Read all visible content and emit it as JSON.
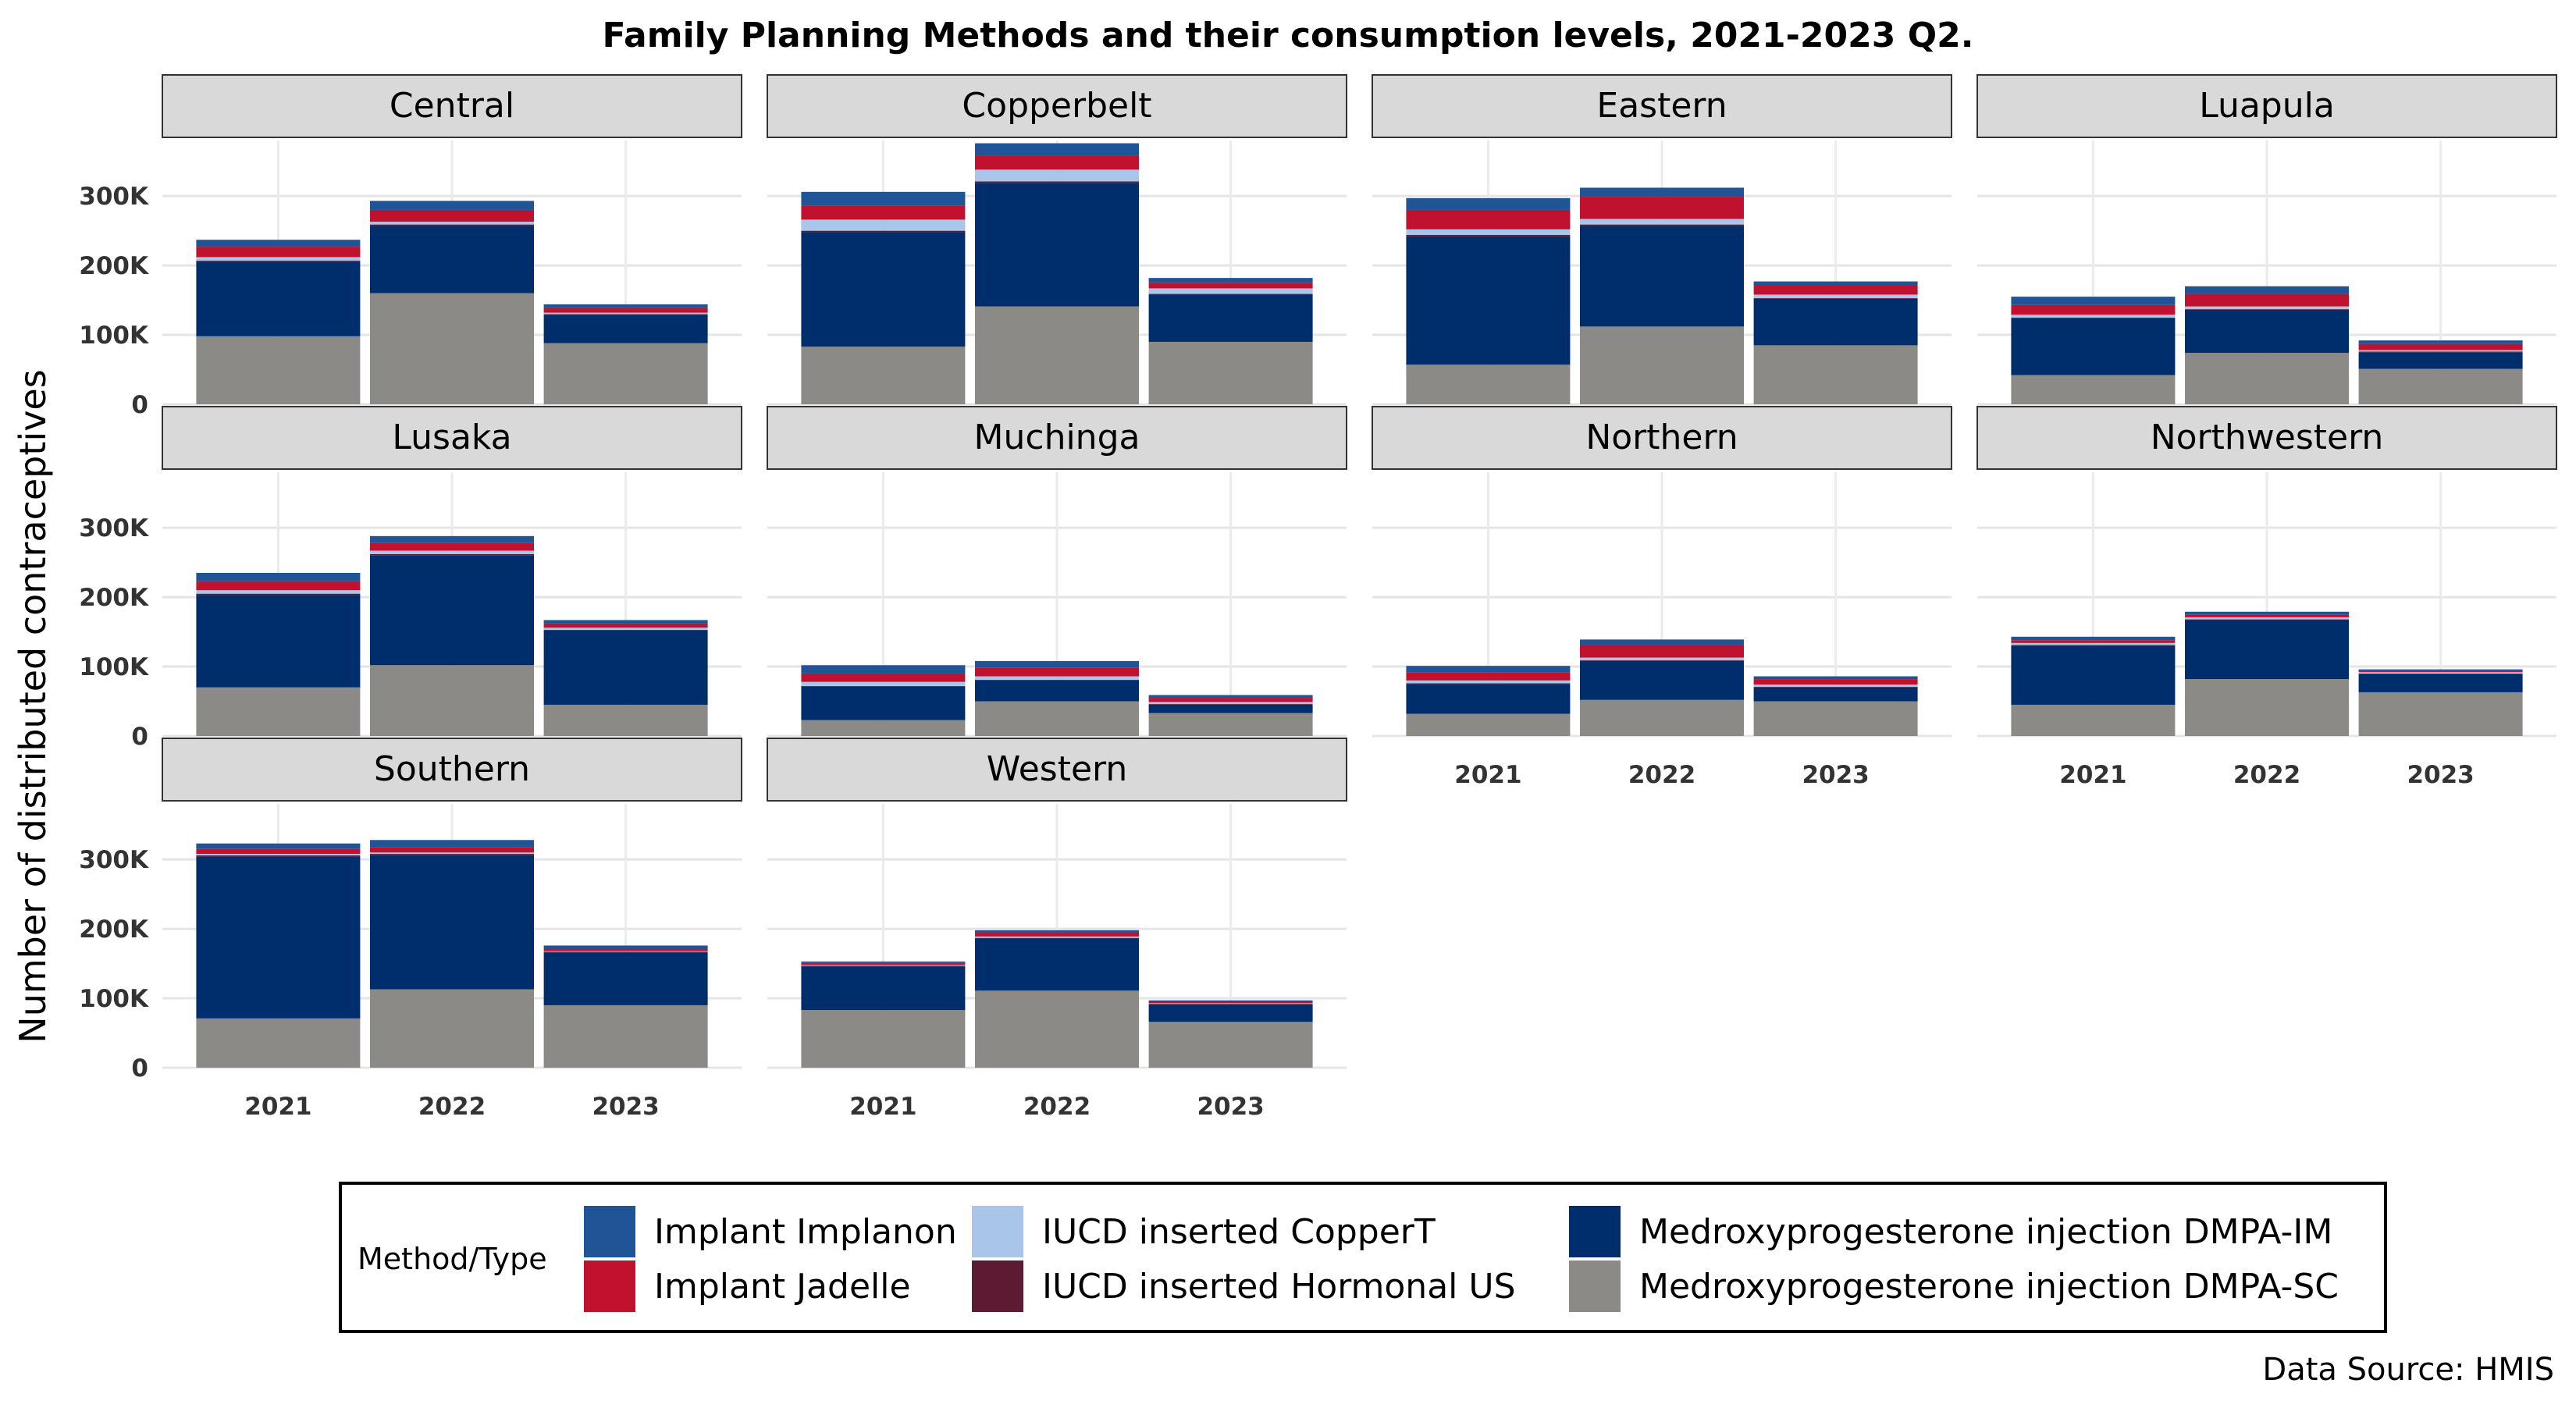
{
  "chart_data": {
    "type": "bar",
    "stacked": true,
    "faceted": true,
    "title": "Family Planning Methods and their consumption levels, 2021-2023 Q2.",
    "ylabel": "Number of distributed contraceptives",
    "xlabel": "",
    "ylim": [
      0,
      380000
    ],
    "y_ticks": [
      0,
      100000,
      200000,
      300000
    ],
    "y_tick_labels": [
      "0",
      "100K",
      "200K",
      "300K"
    ],
    "categories": [
      "2021",
      "2022",
      "2023"
    ],
    "grid": true,
    "legend_placement": "bottom",
    "legend_title": "Method/Type",
    "source": "Data Source: HMIS",
    "series": [
      {
        "key": "dmpa_sc",
        "name": "Medroxyprogesterone injection DMPA-SC",
        "color": "#8c8a86"
      },
      {
        "key": "dmpa_im",
        "name": "Medroxyprogesterone injection DMPA-IM",
        "color": "#002d6b"
      },
      {
        "key": "iucd_hormonal",
        "name": "IUCD inserted Hormonal US",
        "color": "#5c1a33"
      },
      {
        "key": "iucd_coppert",
        "name": "IUCD inserted CopperT",
        "color": "#a9c6ea"
      },
      {
        "key": "implant_jadelle",
        "name": "Implant Jadelle",
        "color": "#c0112e"
      },
      {
        "key": "implant_implanon",
        "name": "Implant Implanon",
        "color": "#1f5496"
      }
    ],
    "legend_order": [
      "implant_implanon",
      "implant_jadelle",
      "iucd_coppert",
      "iucd_hormonal",
      "dmpa_im",
      "dmpa_sc"
    ],
    "facets": [
      {
        "name": "Central",
        "values": {
          "dmpa_sc": [
            98000,
            160000,
            88000
          ],
          "dmpa_im": [
            107000,
            97000,
            41000
          ],
          "iucd_hormonal": [
            2000,
            2000,
            1000
          ],
          "iucd_coppert": [
            5000,
            4000,
            2000
          ],
          "implant_jadelle": [
            15000,
            17000,
            7000
          ],
          "implant_implanon": [
            10000,
            13000,
            5000
          ]
        }
      },
      {
        "name": "Copperbelt",
        "values": {
          "dmpa_sc": [
            83000,
            141000,
            90000
          ],
          "dmpa_im": [
            165000,
            178000,
            68000
          ],
          "iucd_hormonal": [
            2000,
            2000,
            1000
          ],
          "iucd_coppert": [
            16000,
            17000,
            8000
          ],
          "implant_jadelle": [
            20000,
            20000,
            8000
          ],
          "implant_implanon": [
            20000,
            18000,
            7000
          ]
        }
      },
      {
        "name": "Eastern",
        "values": {
          "dmpa_sc": [
            57000,
            112000,
            85000
          ],
          "dmpa_im": [
            185000,
            145000,
            67000
          ],
          "iucd_hormonal": [
            2000,
            2000,
            1000
          ],
          "iucd_coppert": [
            8000,
            8000,
            5000
          ],
          "implant_jadelle": [
            28000,
            32000,
            14000
          ],
          "implant_implanon": [
            17000,
            13000,
            5000
          ]
        }
      },
      {
        "name": "Luapula",
        "values": {
          "dmpa_sc": [
            42000,
            74000,
            51000
          ],
          "dmpa_im": [
            82000,
            62000,
            24000
          ],
          "iucd_hormonal": [
            1000,
            1000,
            1000
          ],
          "iucd_coppert": [
            4000,
            4000,
            2000
          ],
          "implant_jadelle": [
            14000,
            18000,
            9000
          ],
          "implant_implanon": [
            12000,
            11000,
            5000
          ]
        }
      },
      {
        "name": "Lusaka",
        "values": {
          "dmpa_sc": [
            70000,
            102000,
            45000
          ],
          "dmpa_im": [
            133000,
            158000,
            107000
          ],
          "iucd_hormonal": [
            2000,
            2000,
            1000
          ],
          "iucd_coppert": [
            5000,
            5000,
            3000
          ],
          "implant_jadelle": [
            13000,
            11000,
            6000
          ],
          "implant_implanon": [
            12000,
            10000,
            5000
          ]
        }
      },
      {
        "name": "Muchinga",
        "values": {
          "dmpa_sc": [
            23000,
            50000,
            33000
          ],
          "dmpa_im": [
            48000,
            30000,
            12000
          ],
          "iucd_hormonal": [
            1000,
            1000,
            1000
          ],
          "iucd_coppert": [
            6000,
            5000,
            3000
          ],
          "implant_jadelle": [
            12000,
            12000,
            6000
          ],
          "implant_implanon": [
            12000,
            10000,
            4000
          ]
        }
      },
      {
        "name": "Northern",
        "values": {
          "dmpa_sc": [
            32000,
            52000,
            50000
          ],
          "dmpa_im": [
            43000,
            56000,
            20000
          ],
          "iucd_hormonal": [
            1000,
            1000,
            1000
          ],
          "iucd_coppert": [
            4000,
            4000,
            3000
          ],
          "implant_jadelle": [
            12000,
            18000,
            8000
          ],
          "implant_implanon": [
            9000,
            8000,
            4000
          ]
        }
      },
      {
        "name": "Northwestern",
        "values": {
          "dmpa_sc": [
            45000,
            82000,
            63000
          ],
          "dmpa_im": [
            85000,
            85000,
            26000
          ],
          "iucd_hormonal": [
            1000,
            1000,
            1000
          ],
          "iucd_coppert": [
            3000,
            3000,
            2000
          ],
          "implant_jadelle": [
            4000,
            4000,
            2000
          ],
          "implant_implanon": [
            5000,
            4000,
            2000
          ]
        }
      },
      {
        "name": "Southern",
        "values": {
          "dmpa_sc": [
            71000,
            113000,
            90000
          ],
          "dmpa_im": [
            233000,
            193000,
            76000
          ],
          "iucd_hormonal": [
            2000,
            2000,
            1000
          ],
          "iucd_coppert": [
            2000,
            2000,
            1000
          ],
          "implant_jadelle": [
            7000,
            8000,
            4000
          ],
          "implant_implanon": [
            8000,
            10000,
            4000
          ]
        }
      },
      {
        "name": "Western",
        "values": {
          "dmpa_sc": [
            83000,
            111000,
            66000
          ],
          "dmpa_im": [
            63000,
            75000,
            25000
          ],
          "iucd_hormonal": [
            1000,
            1000,
            1000
          ],
          "iucd_coppert": [
            1000,
            2000,
            1000
          ],
          "implant_jadelle": [
            3000,
            6000,
            2000
          ],
          "implant_implanon": [
            2000,
            3000,
            2000
          ]
        }
      }
    ]
  }
}
